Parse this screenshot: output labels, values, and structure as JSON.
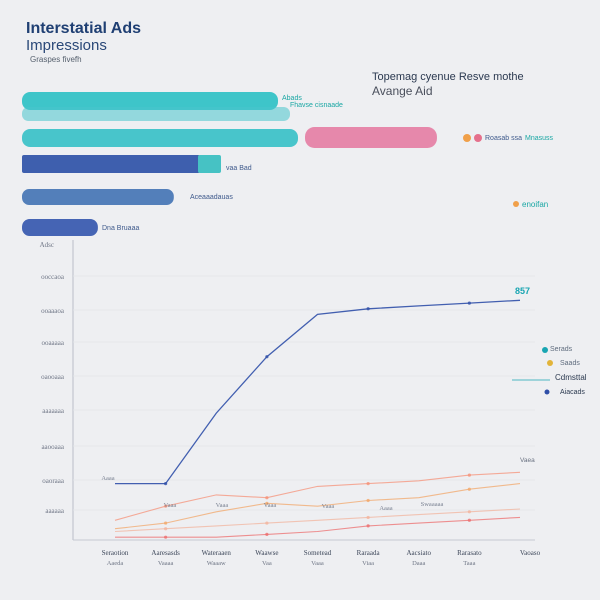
{
  "header": {
    "title_line1": "Interstatial Ads",
    "title_line2": "Impressions",
    "subtitle": "Graspes fivefh",
    "bar_title_line1": "Topemag cyenue Resve mothe",
    "bar_title_line2": "Avange Aid"
  },
  "chart_data": [
    {
      "type": "bar",
      "orientation": "horizontal",
      "bars": [
        {
          "value": 100,
          "color": "#34c2c6",
          "label": "Abads"
        },
        {
          "value": 100,
          "color": "#48c4cc",
          "label": "Fhavse cisnaade"
        },
        {
          "value": 65,
          "color": "#e582a6",
          "label": "Roasab ssa"
        },
        {
          "value": 100,
          "color": "#3ec2c8",
          "label": "Mnasuss"
        },
        {
          "value": 73,
          "color": "#3e5fae",
          "label": "vaa Bad"
        },
        {
          "value": 55,
          "color": "#4a78b6",
          "label": "Aceaaadauas"
        },
        {
          "value": 28,
          "color": "#3b5cb0",
          "label": "Dna Bruaaa"
        }
      ],
      "side_label": "enoifan",
      "xlim": [
        0,
        100
      ],
      "legend": "right"
    },
    {
      "type": "line",
      "x": [
        "Seraotion",
        "Aaresasds",
        "Wateraaen",
        "Waawse",
        "Sometead",
        "Raraada",
        "Aacsiato",
        "Rarasato",
        "Vaoaso"
      ],
      "x_sublabels": [
        "Aaeda",
        "Vaaaa",
        "Waaaw",
        "Vaa",
        "Vaaa",
        "Viaa",
        "Daaa",
        "Taaa",
        ""
      ],
      "y_ticks": [
        "Adsc",
        "ooccaoa",
        "ooaaaoa",
        "ooaaaaa",
        "oaooaaa",
        "aaaaaaa",
        "aaooaaa",
        "oaoraaa",
        "aaaaaa"
      ],
      "ylim": [
        0,
        100
      ],
      "series": [
        {
          "color": "#2f4fa8",
          "values": [
            20,
            20,
            45,
            65,
            80,
            82,
            83,
            84,
            85
          ]
        },
        {
          "color": "#f59278",
          "values": [
            7,
            12,
            16,
            15,
            19,
            20,
            21,
            23,
            24
          ]
        },
        {
          "color": "#f2a76a",
          "values": [
            4,
            6,
            10,
            13,
            12,
            14,
            15,
            18,
            20
          ]
        },
        {
          "color": "#ec6e6e",
          "values": [
            1,
            1,
            1,
            2,
            3,
            5,
            6,
            7,
            8
          ]
        },
        {
          "color": "#f2b49e",
          "values": [
            3,
            4,
            5,
            6,
            7,
            8,
            9,
            10,
            11
          ]
        }
      ],
      "annotations": [
        {
          "text": "857",
          "color": "#18a5b2"
        },
        {
          "text": "Serads",
          "color": "#5f6c7e"
        },
        {
          "text": "Saads",
          "color": "#5f6c7e"
        },
        {
          "text": "Cdmsttal",
          "color": "#2c3a50"
        },
        {
          "text": "Aiacads",
          "color": "#2c3a50"
        },
        {
          "text": "Vaea",
          "color": "#6a7282"
        }
      ],
      "inline_labels": [
        "Aaaa",
        "Vaaa",
        "Vaaa",
        "Vaaa",
        "Vaaa",
        "Aaaa",
        "Swaaaaa"
      ],
      "grid": true,
      "legend": "right"
    }
  ]
}
